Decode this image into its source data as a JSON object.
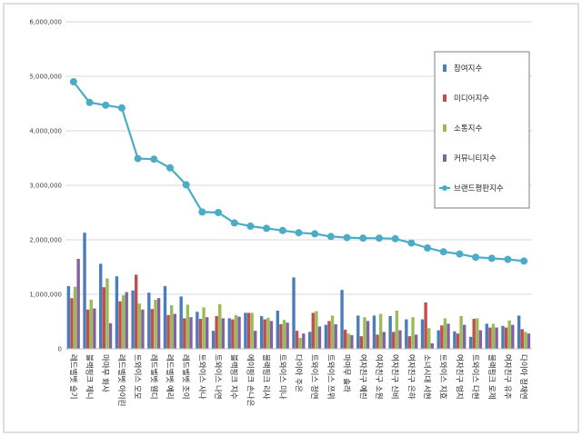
{
  "chart_data": {
    "type": "bar",
    "title": "",
    "xlabel": "",
    "ylabel": "",
    "ylim": [
      0,
      6000000
    ],
    "yticks": [
      "0",
      "1,000,000",
      "2,000,000",
      "3,000,000",
      "4,000,000",
      "5,000,000",
      "6,000,000"
    ],
    "grid": true,
    "legend_position": "right",
    "categories": [
      "레드벨벳 슬기",
      "블랙핑크 제니",
      "마마무 화사",
      "레드벨벳 아이린",
      "트와이스 모모",
      "레드벨벳 웬디",
      "레드벨벳 예리",
      "레드벨벳 조이",
      "트와이스 사나",
      "트와이스 나연",
      "블랙핑크 지수",
      "에이핑크 손나은",
      "블랙핑크 리사",
      "트와이스 미나",
      "다이아 주은",
      "트와이스 정연",
      "트와이스 쯔위",
      "마마무 솔라",
      "여자친구 예린",
      "여자친구 소원",
      "여자친구 신비",
      "여자친구 은하",
      "소녀시대 서현",
      "트와이스 지효",
      "여자친구 엄지",
      "트와이스 다현",
      "블랙핑크 로제",
      "여자친구 유주",
      "다이아 정채연"
    ],
    "series": [
      {
        "name": "참여지수",
        "type": "bar",
        "color": "#4a7ebb",
        "values": [
          1150000,
          2130000,
          1560000,
          1330000,
          1070000,
          1030000,
          1150000,
          960000,
          680000,
          330000,
          560000,
          660000,
          600000,
          700000,
          1310000,
          310000,
          440000,
          1080000,
          610000,
          610000,
          600000,
          540000,
          540000,
          340000,
          320000,
          220000,
          460000,
          420000,
          610000
        ]
      },
      {
        "name": "미디어지수",
        "type": "bar",
        "color": "#c0504d",
        "values": [
          930000,
          720000,
          1130000,
          870000,
          1360000,
          730000,
          620000,
          560000,
          550000,
          600000,
          540000,
          660000,
          540000,
          450000,
          330000,
          660000,
          510000,
          350000,
          230000,
          260000,
          310000,
          230000,
          850000,
          430000,
          280000,
          550000,
          390000,
          390000,
          360000
        ]
      },
      {
        "name": "소통지수",
        "type": "bar",
        "color": "#9bbb59",
        "values": [
          1140000,
          900000,
          1290000,
          980000,
          830000,
          900000,
          800000,
          810000,
          760000,
          820000,
          620000,
          660000,
          570000,
          530000,
          200000,
          690000,
          610000,
          280000,
          580000,
          640000,
          700000,
          580000,
          380000,
          560000,
          600000,
          560000,
          460000,
          520000,
          310000
        ]
      },
      {
        "name": "커뮤니티지수",
        "type": "bar",
        "color": "#8064a2",
        "values": [
          1650000,
          740000,
          470000,
          1040000,
          720000,
          930000,
          640000,
          580000,
          580000,
          560000,
          590000,
          330000,
          510000,
          480000,
          280000,
          410000,
          450000,
          250000,
          510000,
          310000,
          340000,
          260000,
          100000,
          460000,
          440000,
          340000,
          390000,
          440000,
          280000
        ]
      },
      {
        "name": "브랜드평판지수",
        "type": "line",
        "color": "#4bacc6",
        "values": [
          4900000,
          4520000,
          4470000,
          4420000,
          3490000,
          3480000,
          3320000,
          3010000,
          2510000,
          2500000,
          2310000,
          2250000,
          2210000,
          2170000,
          2130000,
          2110000,
          2060000,
          2040000,
          2030000,
          2030000,
          2020000,
          1940000,
          1850000,
          1780000,
          1740000,
          1680000,
          1660000,
          1640000,
          1610000
        ]
      }
    ]
  }
}
